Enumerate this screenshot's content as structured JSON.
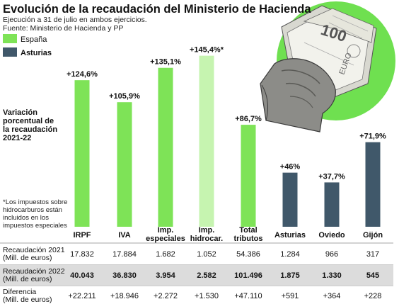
{
  "title": "Evolución de la recaudación del Ministerio de Hacienda",
  "subtitle_lines": [
    "Ejecución a 31 de julio en ambos ejercicios.",
    "Fuente: Ministerio de Hacienda y PP"
  ],
  "side_label_lines": [
    "Variación",
    "porcentual de",
    "la recaudación",
    "2021-22"
  ],
  "footnote_lines": [
    "*Los impuestos sobre",
    "hidrocarburos están",
    "incluidos en los",
    "impuestos especiales"
  ],
  "colors": {
    "espana": "#7ee357",
    "espana_light": "#c6f4b0",
    "asturias": "#40586a",
    "circle": "#6fe050",
    "row_shade": "#dcdcdc"
  },
  "illustration": "hand-holding-euro-banknotes",
  "chart_data": {
    "type": "bar",
    "ylim": [
      0,
      160
    ],
    "legend": [
      {
        "label": "España",
        "color": "#7ee357"
      },
      {
        "label": "Asturias",
        "color": "#40586a"
      }
    ],
    "categories": [
      {
        "label_lines": [
          "IRPF"
        ],
        "value": 124.6,
        "value_label": "+124,6%",
        "group": "España"
      },
      {
        "label_lines": [
          "IVA"
        ],
        "value": 105.9,
        "value_label": "+105,9%",
        "group": "España"
      },
      {
        "label_lines": [
          "Imp.",
          "especiales"
        ],
        "value": 135.1,
        "value_label": "+135,1%",
        "group": "España"
      },
      {
        "label_lines": [
          "Imp.",
          "hidrocar."
        ],
        "value": 145.4,
        "value_label": "+145,4%*",
        "group": "España",
        "highlight": "light"
      },
      {
        "label_lines": [
          "Total",
          "tributos"
        ],
        "value": 86.7,
        "value_label": "+86,7%",
        "group": "España"
      },
      {
        "label_lines": [
          "Asturias"
        ],
        "value": 46,
        "value_label": "+46%",
        "group": "Asturias"
      },
      {
        "label_lines": [
          "Oviedo"
        ],
        "value": 37.7,
        "value_label": "+37,7%",
        "group": "Asturias"
      },
      {
        "label_lines": [
          "Gijón"
        ],
        "value": 71.9,
        "value_label": "+71,9%",
        "group": "Asturias"
      }
    ],
    "table": [
      {
        "label_lines": [
          "Recaudación 2021",
          "(Mill. de euros)"
        ],
        "bold": false,
        "shaded": false,
        "values": [
          "17.832",
          "17.884",
          "1.682",
          "1.052",
          "54.386",
          "1.284",
          "966",
          "317"
        ]
      },
      {
        "label_lines": [
          "Recaudación 2022",
          "(Mill. de euros)"
        ],
        "bold": true,
        "shaded": true,
        "values": [
          "40.043",
          "36.830",
          "3.954",
          "2.582",
          "101.496",
          "1.875",
          "1.330",
          "545"
        ]
      },
      {
        "label_lines": [
          "Diferencia",
          "(Mill. de euros)"
        ],
        "bold": false,
        "shaded": false,
        "values": [
          "+22.211",
          "+18.946",
          "+2.272",
          "+1.530",
          "+47.110",
          "+591",
          "+364",
          "+228"
        ]
      }
    ]
  }
}
